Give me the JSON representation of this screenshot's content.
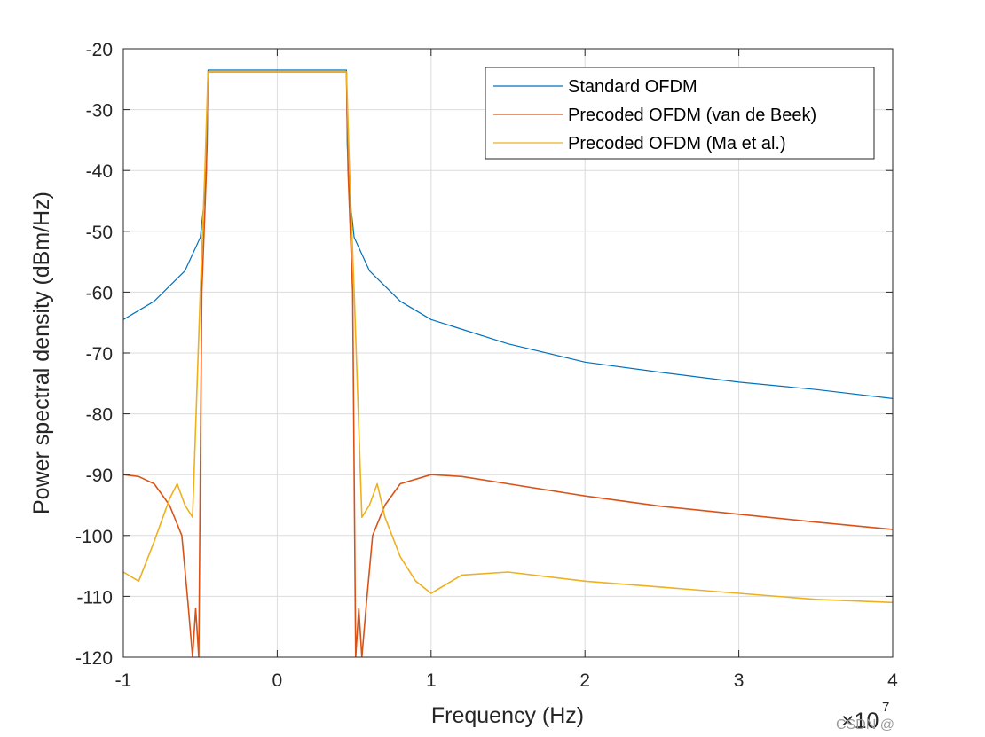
{
  "chart_data": {
    "type": "line",
    "title": "",
    "xlabel": "Frequency (Hz)",
    "ylabel": "Power spectral density (dBm/Hz)",
    "x_exponent_label": "×10",
    "x_exponent_power": "7",
    "xlim": [
      -1,
      4
    ],
    "ylim": [
      -120,
      -20
    ],
    "xticks": [
      -1,
      0,
      1,
      2,
      3,
      4
    ],
    "yticks": [
      -120,
      -110,
      -100,
      -90,
      -80,
      -70,
      -60,
      -50,
      -40,
      -30,
      -20
    ],
    "grid": true,
    "legend_position": "top-right",
    "series": [
      {
        "name": "Standard OFDM",
        "color": "#0072BD",
        "x": [
          -1.0,
          -0.8,
          -0.6,
          -0.5,
          -0.47,
          -0.455,
          -0.45,
          -0.4,
          0.0,
          0.4,
          0.45,
          0.455,
          0.47,
          0.5,
          0.6,
          0.8,
          1.0,
          1.5,
          2.0,
          2.5,
          3.0,
          3.5,
          4.0
        ],
        "y": [
          -64.5,
          -61.5,
          -56.5,
          -51.0,
          -44.0,
          -36.0,
          -23.5,
          -23.5,
          -23.5,
          -23.5,
          -23.5,
          -36.0,
          -44.0,
          -51.0,
          -56.5,
          -61.5,
          -64.5,
          -68.5,
          -71.5,
          -73.2,
          -74.8,
          -76.0,
          -77.5
        ]
      },
      {
        "name": "Precoded OFDM (van de Beek)",
        "color": "#D95319",
        "x": [
          -1.0,
          -0.9,
          -0.8,
          -0.7,
          -0.62,
          -0.58,
          -0.55,
          -0.53,
          -0.51,
          -0.49,
          -0.46,
          -0.45,
          -0.4,
          0.0,
          0.4,
          0.45,
          0.46,
          0.49,
          0.51,
          0.53,
          0.55,
          0.58,
          0.62,
          0.7,
          0.8,
          1.0,
          1.2,
          1.5,
          2.0,
          2.5,
          3.0,
          3.5,
          4.0
        ],
        "y": [
          -90.0,
          -90.3,
          -91.5,
          -95.0,
          -100.0,
          -111.0,
          -120.0,
          -112.0,
          -120.0,
          -60.0,
          -40.0,
          -23.8,
          -23.8,
          -23.8,
          -23.8,
          -23.8,
          -40.0,
          -60.0,
          -120.0,
          -112.0,
          -120.0,
          -111.0,
          -100.0,
          -95.0,
          -91.5,
          -90.0,
          -90.3,
          -91.5,
          -93.5,
          -95.2,
          -96.5,
          -97.8,
          -99.0
        ]
      },
      {
        "name": "Precoded OFDM (Ma et al.)",
        "color": "#EDB120",
        "x": [
          -1.0,
          -0.9,
          -0.8,
          -0.7,
          -0.65,
          -0.6,
          -0.55,
          -0.5,
          -0.47,
          -0.45,
          -0.4,
          0.0,
          0.4,
          0.45,
          0.47,
          0.5,
          0.55,
          0.6,
          0.65,
          0.7,
          0.8,
          0.9,
          1.0,
          1.2,
          1.5,
          2.0,
          2.5,
          3.0,
          3.5,
          4.0
        ],
        "y": [
          -106.0,
          -107.5,
          -101.0,
          -94.0,
          -91.5,
          -95.0,
          -97.0,
          -60.0,
          -40.0,
          -23.8,
          -23.8,
          -23.8,
          -23.8,
          -23.8,
          -40.0,
          -60.0,
          -97.0,
          -95.0,
          -91.5,
          -97.0,
          -103.5,
          -107.5,
          -109.5,
          -106.5,
          -106.0,
          -107.5,
          -108.5,
          -109.5,
          -110.5,
          -111.0
        ]
      }
    ]
  },
  "watermark": "CSDN @"
}
